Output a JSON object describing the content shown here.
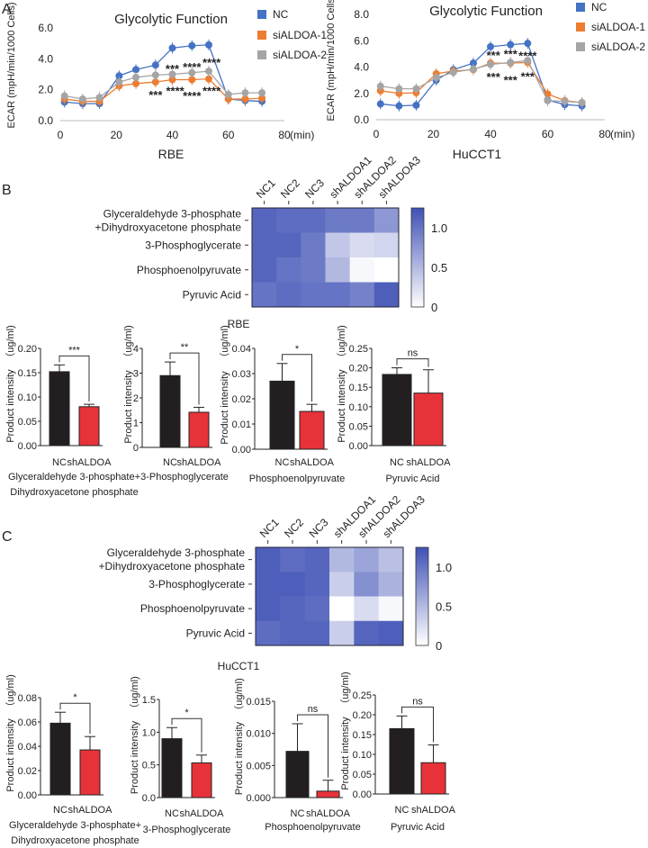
{
  "panel_labels": [
    "A",
    "B",
    "C"
  ],
  "chart_data": [
    {
      "type": "line",
      "title": "Glycolytic Function",
      "xlabel": "RBE",
      "x_unit": "(min)",
      "ylabel": "ECAR (mpH/min/1000 Cells)",
      "xlim": [
        0,
        80
      ],
      "xticks": [
        0,
        20,
        40,
        60,
        80
      ],
      "ylim": [
        0,
        6
      ],
      "yticks": [
        "0.0",
        "2.0",
        "4.0",
        "6.0"
      ],
      "legend_position": "top-right",
      "x": [
        1.5,
        8,
        14,
        21,
        27,
        34,
        40,
        47,
        53,
        60,
        66,
        72
      ],
      "series": [
        {
          "name": "NC",
          "color": "#4472C4",
          "values": [
            1.2,
            1.1,
            1.1,
            2.9,
            3.3,
            3.6,
            4.7,
            4.85,
            4.9,
            1.4,
            1.3,
            1.25
          ]
        },
        {
          "name": "siALDOA-1",
          "color": "#ED7D31",
          "values": [
            1.4,
            1.25,
            1.25,
            2.25,
            2.4,
            2.5,
            2.65,
            2.65,
            2.7,
            1.4,
            1.4,
            1.45
          ]
        },
        {
          "name": "siALDOA-2",
          "color": "#A5A5A5",
          "values": [
            1.6,
            1.4,
            1.5,
            2.5,
            2.8,
            2.95,
            3.0,
            3.1,
            3.2,
            1.7,
            1.8,
            1.8
          ]
        }
      ],
      "annotations": [
        {
          "text": "***",
          "x": 40,
          "y": 3.45,
          "color": "#A5A5A5"
        },
        {
          "text": "****",
          "x": 47,
          "y": 3.55,
          "color": "#A5A5A5"
        },
        {
          "text": "****",
          "x": 54,
          "y": 3.85,
          "color": "#A5A5A5"
        },
        {
          "text": "***",
          "x": 34,
          "y": 1.75,
          "color": "#ED7D31"
        },
        {
          "text": "****",
          "x": 41,
          "y": 2.0,
          "color": "#ED7D31"
        },
        {
          "text": "****",
          "x": 47,
          "y": 1.7,
          "color": "#ED7D31"
        },
        {
          "text": "****",
          "x": 54,
          "y": 2.0,
          "color": "#ED7D31"
        }
      ]
    },
    {
      "type": "line",
      "title": "Glycolytic Function",
      "xlabel": "HuCCT1",
      "x_unit": "(min)",
      "ylabel": "ECAR (mpH/min/1000 Cells)",
      "xlim": [
        0,
        80
      ],
      "xticks": [
        0,
        20,
        40,
        60,
        80
      ],
      "ylim": [
        0,
        8
      ],
      "yticks": [
        "0.0",
        "2.0",
        "4.0",
        "6.0",
        "8.0"
      ],
      "legend_position": "top-right",
      "x": [
        1.5,
        8,
        14,
        21,
        27,
        34,
        40,
        47,
        53,
        60,
        66,
        72
      ],
      "series": [
        {
          "name": "NC",
          "color": "#4472C4",
          "values": [
            1.2,
            1.05,
            1.1,
            3.0,
            3.8,
            4.3,
            5.55,
            5.7,
            5.8,
            1.5,
            1.15,
            1.05
          ]
        },
        {
          "name": "siALDOA-1",
          "color": "#ED7D31",
          "values": [
            2.2,
            2.0,
            2.05,
            3.5,
            3.7,
            3.8,
            4.3,
            4.3,
            4.35,
            1.95,
            1.45,
            1.3
          ]
        },
        {
          "name": "siALDOA-2",
          "color": "#A5A5A5",
          "values": [
            2.55,
            2.35,
            2.35,
            3.2,
            3.6,
            3.85,
            4.2,
            4.35,
            4.5,
            1.45,
            1.4,
            1.3
          ]
        }
      ],
      "annotations": [
        {
          "text": "***",
          "x": 41,
          "y": 5.0,
          "color": "#ED7D31"
        },
        {
          "text": "***",
          "x": 47,
          "y": 5.1,
          "color": "#ED7D31"
        },
        {
          "text": "****",
          "x": 53,
          "y": 4.95,
          "color": "#ED7D31"
        },
        {
          "text": "***",
          "x": 41,
          "y": 3.35,
          "color": "#A5A5A5"
        },
        {
          "text": "***",
          "x": 47,
          "y": 3.1,
          "color": "#A5A5A5"
        },
        {
          "text": "***",
          "x": 53,
          "y": 3.4,
          "color": "#A5A5A5"
        }
      ]
    },
    {
      "type": "heatmap",
      "caption": "RBE",
      "columns": [
        "NC1",
        "NC2",
        "NC3",
        "shALDOA1",
        "shALDOA2",
        "shALDOA3"
      ],
      "rows": [
        "Glyceraldehyde 3-phosphate\n+Dihydroxyacetone phosphate",
        "3-Phosphoglycerate",
        "Phosphoenolpyruvate",
        "Pyruvic Acid"
      ],
      "values": [
        [
          1.1,
          1.05,
          1.05,
          0.95,
          0.95,
          0.75
        ],
        [
          1.1,
          1.1,
          0.95,
          0.4,
          0.25,
          0.3
        ],
        [
          1.1,
          1.0,
          0.95,
          0.5,
          0.05,
          0.0
        ],
        [
          1.0,
          1.05,
          1.0,
          1.0,
          0.9,
          1.15
        ]
      ],
      "colorbar": {
        "range": [
          0,
          1.25
        ],
        "ticks": [
          "0",
          "0.5",
          "1.0"
        ],
        "low_color": "#FFFFFF",
        "high_color": "#3F51B5"
      }
    },
    {
      "type": "heatmap",
      "caption": "HuCCT1",
      "columns": [
        "NC1",
        "NC2",
        "NC3",
        "shALDOA1",
        "shALDOA2",
        "shALDOA3"
      ],
      "rows": [
        "Glyceraldehyde 3-phosphate\n+Dihydroxyacetone phosphate",
        "3-Phosphoglycerate",
        "Phosphoenolpyruvate",
        "Pyruvic Acid"
      ],
      "values": [
        [
          1.15,
          1.05,
          1.1,
          0.5,
          0.65,
          0.45
        ],
        [
          1.15,
          1.15,
          1.1,
          0.35,
          0.8,
          0.55
        ],
        [
          1.15,
          1.1,
          1.05,
          0.0,
          0.25,
          0.05
        ],
        [
          1.05,
          1.1,
          1.1,
          0.35,
          1.1,
          1.15
        ]
      ],
      "colorbar": {
        "range": [
          0,
          1.25
        ],
        "ticks": [
          "0",
          "0.5",
          "1.0"
        ],
        "low_color": "#FFFFFF",
        "high_color": "#3F51B5"
      }
    },
    {
      "type": "bar",
      "group": "RBE",
      "xlabel": "Glyceraldehyde 3-phosphate+\nDihydroxyacetone phosphate",
      "ylabel": "Product intensity",
      "yunit": "（ug/ml)",
      "categories": [
        "NC",
        "shALDOA"
      ],
      "values": [
        0.152,
        0.08
      ],
      "errors": [
        0.014,
        0.005
      ],
      "colors": [
        "#231F20",
        "#E8323A"
      ],
      "ylim": [
        0,
        0.2
      ],
      "yticks": [
        "0.00",
        "0.05",
        "0.10",
        "0.15",
        "0.20"
      ],
      "significance": "***"
    },
    {
      "type": "bar",
      "group": "RBE",
      "xlabel": "3-Phosphoglycerate",
      "ylabel": "Product intensity",
      "yunit": "（ug/ml)",
      "categories": [
        "NC",
        "shALDOA"
      ],
      "values": [
        2.9,
        1.42
      ],
      "errors": [
        0.55,
        0.2
      ],
      "colors": [
        "#231F20",
        "#E8323A"
      ],
      "ylim": [
        0,
        4
      ],
      "yticks": [
        "0",
        "1",
        "2",
        "3",
        "4"
      ],
      "significance": "**"
    },
    {
      "type": "bar",
      "group": "RBE",
      "xlabel": "Phosphoenolpyruvate",
      "ylabel": "Product intensity",
      "yunit": "（ug/ml)",
      "categories": [
        "NC",
        "shALDOA"
      ],
      "values": [
        0.027,
        0.015
      ],
      "errors": [
        0.007,
        0.0028
      ],
      "colors": [
        "#231F20",
        "#E8323A"
      ],
      "ylim": [
        0,
        0.04
      ],
      "yticks": [
        "0.00",
        "0.01",
        "0.02",
        "0.03",
        "0.04"
      ],
      "significance": "*"
    },
    {
      "type": "bar",
      "group": "RBE",
      "xlabel": "Pyruvic Acid",
      "ylabel": "Product intensity",
      "yunit": "（ug/ml)",
      "categories": [
        "NC",
        "shALDOA"
      ],
      "values": [
        0.183,
        0.135
      ],
      "errors": [
        0.017,
        0.06
      ],
      "colors": [
        "#231F20",
        "#E8323A"
      ],
      "ylim": [
        0,
        0.25
      ],
      "yticks": [
        "0.00",
        "0.05",
        "0.10",
        "0.15",
        "0.20",
        "0.25"
      ],
      "significance": "ns"
    },
    {
      "type": "bar",
      "group": "HuCCT1",
      "xlabel": "Glyceraldehyde 3-phosphate+\nDihydroxyacetone phosphate",
      "ylabel": "Product intensity",
      "yunit": "（ug/ml)",
      "categories": [
        "NC",
        "shALDOA"
      ],
      "values": [
        0.059,
        0.037
      ],
      "errors": [
        0.009,
        0.011
      ],
      "colors": [
        "#231F20",
        "#E8323A"
      ],
      "ylim": [
        0,
        0.08
      ],
      "yticks": [
        "0.00",
        "0.02",
        "0.04",
        "0.06",
        "0.08"
      ],
      "significance": "*"
    },
    {
      "type": "bar",
      "group": "HuCCT1",
      "xlabel": "3-Phosphoglycerate",
      "ylabel": "Product intensity",
      "yunit": "（ug/ml)",
      "categories": [
        "NC",
        "shALDOA"
      ],
      "values": [
        0.9,
        0.53
      ],
      "errors": [
        0.17,
        0.12
      ],
      "colors": [
        "#231F20",
        "#E8323A"
      ],
      "ylim": [
        0,
        1.5
      ],
      "yticks": [
        "0.0",
        "0.5",
        "1.0",
        "1.5"
      ],
      "significance": "*"
    },
    {
      "type": "bar",
      "group": "HuCCT1",
      "xlabel": "Phosphoenolpyruvate",
      "ylabel": "Product intensity",
      "yunit": "（ug/ml)",
      "categories": [
        "NC",
        "shALDOA"
      ],
      "values": [
        0.0072,
        0.001
      ],
      "errors": [
        0.0043,
        0.0017
      ],
      "colors": [
        "#231F20",
        "#E8323A"
      ],
      "ylim": [
        0,
        0.015
      ],
      "yticks": [
        "0.000",
        "0.005",
        "0.010",
        "0.015"
      ],
      "significance": "ns"
    },
    {
      "type": "bar",
      "group": "HuCCT1",
      "xlabel": "Pyruvic Acid",
      "ylabel": "Product intensity",
      "yunit": "（ug/ml)",
      "categories": [
        "NC",
        "shALDOA"
      ],
      "values": [
        0.165,
        0.079
      ],
      "errors": [
        0.032,
        0.045
      ],
      "colors": [
        "#231F20",
        "#E8323A"
      ],
      "ylim": [
        0,
        0.25
      ],
      "yticks": [
        "0.00",
        "0.05",
        "0.10",
        "0.15",
        "0.20",
        "0.25"
      ],
      "significance": "ns"
    }
  ]
}
